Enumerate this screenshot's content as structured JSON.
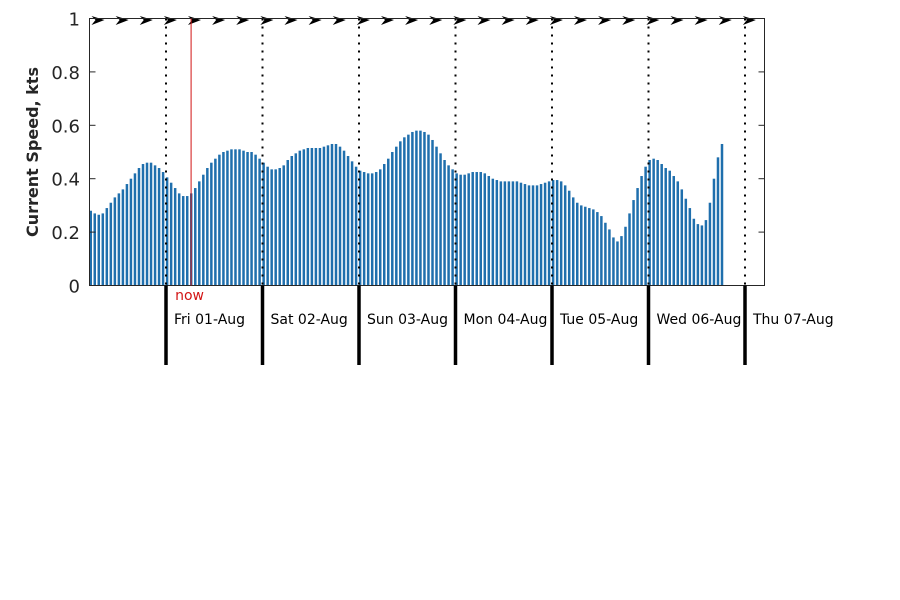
{
  "chart_data": {
    "type": "bar",
    "ylabel": "Current Speed, kts",
    "ylim": [
      0,
      1
    ],
    "yticks": [
      "0",
      "0.2",
      "0.4",
      "0.6",
      "0.8",
      "1"
    ],
    "now_label": "now",
    "now_position_days": 0.26,
    "days_before_first_label": 0.78,
    "bars_per_day": 24,
    "day_labels": [
      "Fri 01-Aug",
      "Sat 02-Aug",
      "Sun 03-Aug",
      "Mon 04-Aug",
      "Tue 05-Aug",
      "Wed 06-Aug",
      "Thu 07-Aug"
    ],
    "values": [
      0.28,
      0.27,
      0.265,
      0.27,
      0.29,
      0.31,
      0.33,
      0.345,
      0.36,
      0.38,
      0.4,
      0.42,
      0.44,
      0.455,
      0.46,
      0.46,
      0.45,
      0.44,
      0.425,
      0.405,
      0.385,
      0.365,
      0.345,
      0.335,
      0.335,
      0.345,
      0.365,
      0.39,
      0.415,
      0.44,
      0.46,
      0.475,
      0.49,
      0.5,
      0.505,
      0.51,
      0.51,
      0.51,
      0.505,
      0.5,
      0.5,
      0.49,
      0.475,
      0.46,
      0.445,
      0.435,
      0.435,
      0.44,
      0.45,
      0.47,
      0.485,
      0.495,
      0.505,
      0.51,
      0.515,
      0.515,
      0.515,
      0.515,
      0.52,
      0.525,
      0.53,
      0.53,
      0.52,
      0.505,
      0.485,
      0.465,
      0.445,
      0.43,
      0.425,
      0.42,
      0.42,
      0.425,
      0.435,
      0.455,
      0.475,
      0.5,
      0.52,
      0.54,
      0.555,
      0.565,
      0.575,
      0.58,
      0.58,
      0.575,
      0.565,
      0.545,
      0.52,
      0.495,
      0.47,
      0.45,
      0.435,
      0.42,
      0.415,
      0.415,
      0.42,
      0.425,
      0.425,
      0.425,
      0.42,
      0.41,
      0.4,
      0.395,
      0.39,
      0.39,
      0.39,
      0.39,
      0.39,
      0.385,
      0.38,
      0.375,
      0.375,
      0.375,
      0.38,
      0.385,
      0.39,
      0.395,
      0.395,
      0.39,
      0.375,
      0.355,
      0.33,
      0.31,
      0.3,
      0.295,
      0.29,
      0.285,
      0.275,
      0.26,
      0.235,
      0.21,
      0.18,
      0.165,
      0.185,
      0.22,
      0.27,
      0.32,
      0.365,
      0.41,
      0.445,
      0.47,
      0.475,
      0.47,
      0.455,
      0.44,
      0.43,
      0.41,
      0.39,
      0.36,
      0.325,
      0.29,
      0.25,
      0.23,
      0.225,
      0.245,
      0.31,
      0.4,
      0.48,
      0.53
    ],
    "bar_color": "#1f6fad",
    "now_color": "#d21414",
    "axis_color": "#262626",
    "direction_marker_color": "#000000"
  }
}
